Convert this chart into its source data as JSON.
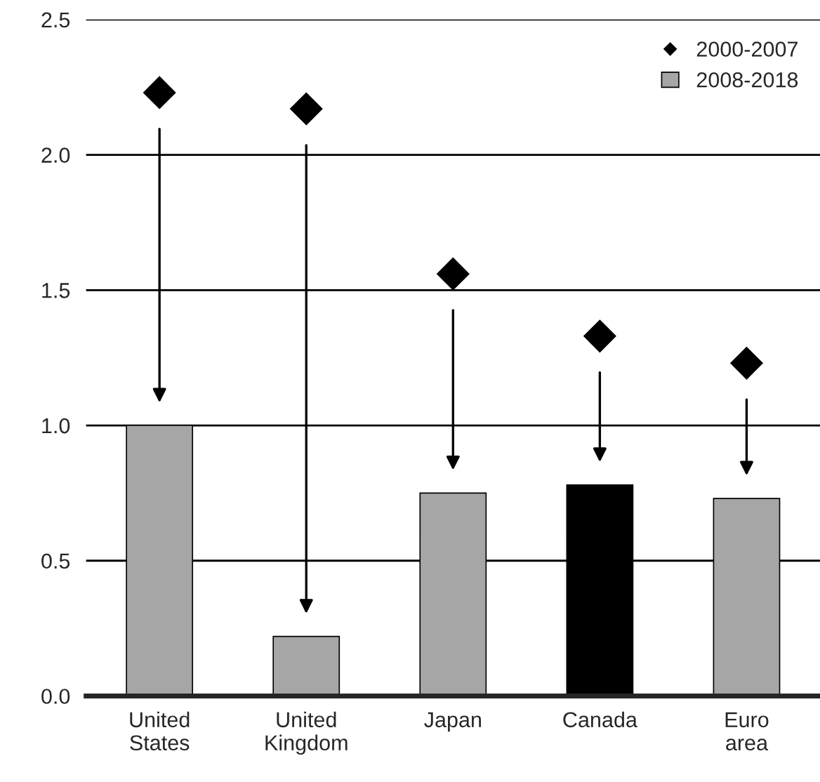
{
  "chart_data": {
    "type": "bar",
    "categories": [
      "United\nStates",
      "United\nKingdom",
      "Japan",
      "Canada",
      "Euro\narea"
    ],
    "series": [
      {
        "name": "2000-2007",
        "type": "scatter",
        "marker": "diamond",
        "color": "#000000",
        "values": [
          2.23,
          2.17,
          1.56,
          1.33,
          1.23
        ]
      },
      {
        "name": "2008-2018",
        "color": "#a6a6a6",
        "colors": [
          "#a6a6a6",
          "#a6a6a6",
          "#a6a6a6",
          "#000000",
          "#a6a6a6"
        ],
        "values": [
          1.0,
          0.22,
          0.75,
          0.78,
          0.73
        ]
      }
    ],
    "ylim": [
      0,
      2.5
    ],
    "yticks": [
      {
        "value": 0,
        "label": "0.0"
      },
      {
        "value": 0.5,
        "label": "0.5"
      },
      {
        "value": 1.0,
        "label": "1.0"
      },
      {
        "value": 1.5,
        "label": "1.5"
      },
      {
        "value": 2.0,
        "label": "2.0"
      },
      {
        "value": 2.5,
        "label": "2.5"
      }
    ],
    "grid": "y",
    "legend": "top right"
  }
}
